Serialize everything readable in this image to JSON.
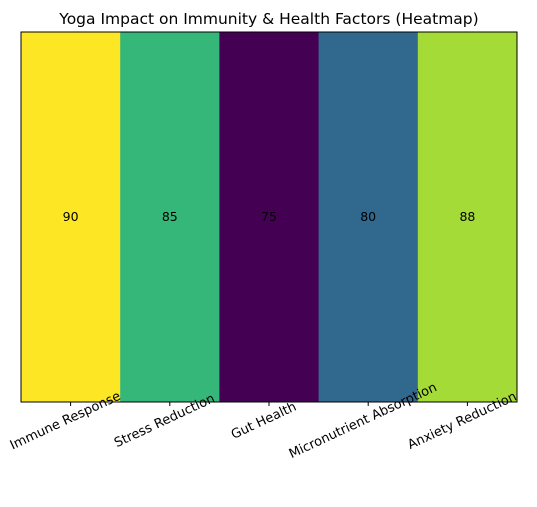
{
  "chart_data": {
    "type": "heatmap",
    "title": "Yoga Impact on Immunity & Health Factors (Heatmap)",
    "categories": [
      "Immune Response",
      "Stress Reduction",
      "Gut Health",
      "Micronutrient Absorption",
      "Anxiety Reduction"
    ],
    "values": [
      90,
      85,
      75,
      80,
      88
    ],
    "value_range": [
      75,
      90
    ],
    "colormap": "viridis",
    "cell_colors": [
      "#fde725",
      "#35b779",
      "#440154",
      "#31688e",
      "#a5db36"
    ],
    "xlabel": "",
    "ylabel": "",
    "x_tick_rotation_deg": 25,
    "y_ticks_visible": false,
    "grid": false,
    "legend": "none"
  }
}
